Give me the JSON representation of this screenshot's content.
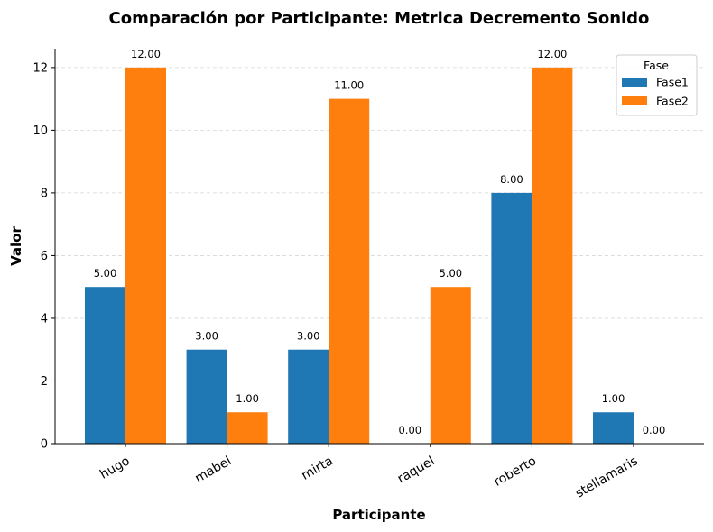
{
  "chart_data": {
    "type": "bar",
    "title": "Comparación por Participante: Metrica Decremento Sonido",
    "xlabel": "Participante",
    "ylabel": "Valor",
    "categories": [
      "hugo",
      "mabel",
      "mirta",
      "raquel",
      "roberto",
      "stellamaris"
    ],
    "series": [
      {
        "name": "Fase1",
        "color": "#1f77b4",
        "values": [
          5,
          3,
          3,
          0,
          8,
          1
        ]
      },
      {
        "name": "Fase2",
        "color": "#ff7f0e",
        "values": [
          12,
          1,
          11,
          5,
          12,
          0
        ]
      }
    ],
    "ylim": [
      0,
      12.6
    ],
    "yticks": [
      0,
      2,
      4,
      6,
      8,
      10,
      12
    ],
    "value_label_format": "0.00",
    "grid": "horizontal dashed",
    "legend": {
      "title": "Fase",
      "placement": "top-right"
    }
  }
}
